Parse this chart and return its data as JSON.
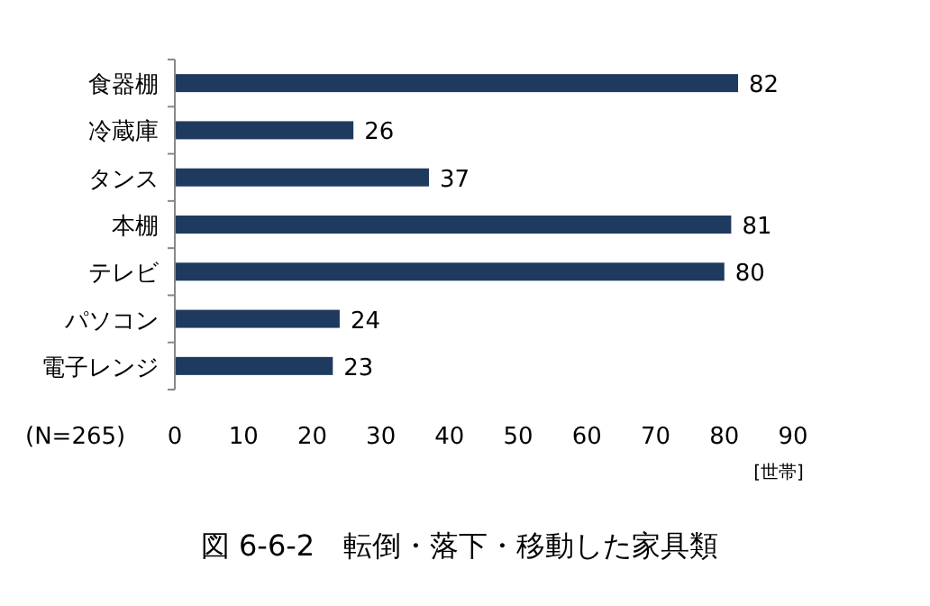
{
  "chart_data": {
    "type": "bar",
    "orientation": "horizontal",
    "title": "図 6-6-2　転倒・落下・移動した家具類",
    "xlabel": "[世帯]",
    "categories": [
      "食器棚",
      "冷蔵庫",
      "タンス",
      "本棚",
      "テレビ",
      "パソコン",
      "電子レンジ"
    ],
    "values": [
      82,
      26,
      37,
      81,
      80,
      24,
      23
    ],
    "color": "#1f3a5f",
    "xlim": [
      0,
      90
    ],
    "xticks": [
      0,
      10,
      20,
      30,
      40,
      50,
      60,
      70,
      80,
      90
    ],
    "data_labels": true,
    "annotations": [
      "(N=265)"
    ]
  }
}
